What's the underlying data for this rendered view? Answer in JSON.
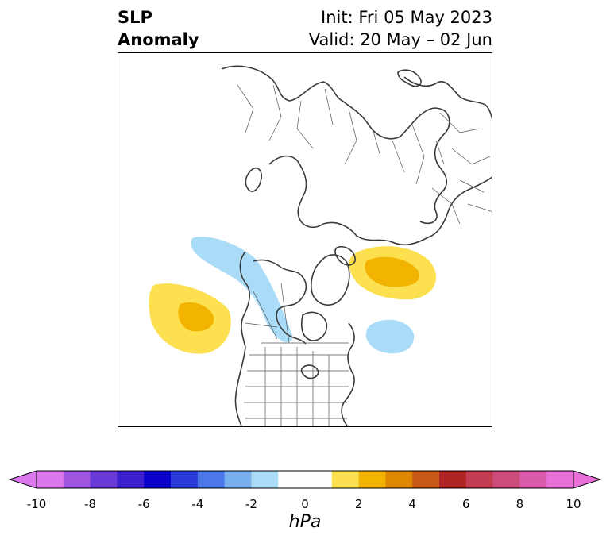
{
  "title": {
    "variable_line1": "SLP",
    "variable_line2": "Anomaly",
    "init": "Init: Fri 05 May 2023",
    "valid": "Valid: 20 May – 02 Jun"
  },
  "map": {
    "projection": "north-polar-stereographic",
    "features": [
      "coastlines",
      "country-borders",
      "us-state-borders"
    ],
    "anomaly_regions": [
      {
        "name": "north-pacific-high",
        "sign": "positive",
        "peak_hpa": 3
      },
      {
        "name": "barents-kara-high",
        "sign": "positive",
        "peak_hpa": 3
      },
      {
        "name": "alaska-canada-low",
        "sign": "negative",
        "peak_hpa": -2
      },
      {
        "name": "north-atlantic-low",
        "sign": "negative",
        "peak_hpa": -2
      }
    ]
  },
  "colorbar": {
    "unit": "hPa",
    "min": -10,
    "max": 10,
    "extend": "both",
    "tick_labels": [
      "-10",
      "-8",
      "-6",
      "-4",
      "-2",
      "0",
      "2",
      "4",
      "6",
      "8",
      "10"
    ],
    "level_colors": [
      "#dd77ee",
      "#a055e0",
      "#6a3ad8",
      "#3a1ed0",
      "#0a00cc",
      "#2a3ad8",
      "#4a78e8",
      "#78b0f0",
      "#aadcf8",
      "#ffffff",
      "#ffffff",
      "#fde050",
      "#f2b400",
      "#e08800",
      "#c85a18",
      "#b02424",
      "#c43c52",
      "#cc4c7c",
      "#d85aa8",
      "#e870d8"
    ],
    "under_color": "#dd77ee",
    "over_color": "#e870d8"
  }
}
